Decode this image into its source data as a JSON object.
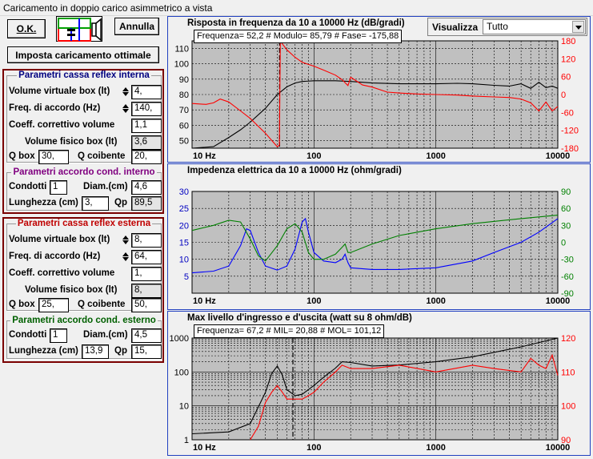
{
  "window": {
    "title": "Caricamento in doppio carico asimmetrico a vista"
  },
  "toolbar": {
    "ok_label": "O.K.",
    "annulla_label": "Annulla",
    "imposta_label": "Imposta caricamento ottimale"
  },
  "visualizza": {
    "label": "Visualizza",
    "selected": "Tutto"
  },
  "internal_box": {
    "title": "Parametri cassa reflex interna",
    "title_color": "#000080",
    "volume_label": "Volume virtuale box (lt)",
    "volume_value": "4,",
    "freq_label": "Freq. di accordo (Hz)",
    "freq_value": "140,",
    "coeff_label": "Coeff. correttivo volume",
    "coeff_value": "1,1",
    "physical_label": "Volume fisico box (lt)",
    "physical_value": "3,6",
    "qbox_label": "Q box",
    "qbox_value": "30,",
    "qcoib_label": "Q coibente",
    "qcoib_value": "20,"
  },
  "internal_duct": {
    "title": "Parametri accordo cond. interno",
    "title_color": "#800080",
    "condotti_label": "Condotti",
    "condotti_value": "1",
    "diam_label": "Diam.(cm)",
    "diam_value": "4,6",
    "lung_label": "Lunghezza (cm)",
    "lung_value": "3,",
    "qp_label": "Qp",
    "qp_value": "89,5"
  },
  "external_box": {
    "title": "Parametri cassa reflex esterna",
    "title_color": "#c00000",
    "volume_label": "Volume virtuale box (lt)",
    "volume_value": "8,",
    "freq_label": "Freq. di accordo (Hz)",
    "freq_value": "64,",
    "coeff_label": "Coeff. correttivo volume",
    "coeff_value": "1,",
    "physical_label": "Volume fisico box (lt)",
    "physical_value": "8,",
    "qbox_label": "Q box",
    "qbox_value": "25,",
    "qcoib_label": "Q coibente",
    "qcoib_value": "50,"
  },
  "external_duct": {
    "title": "Parametri accordo cond. esterno",
    "title_color": "#006000",
    "condotti_label": "Condotti",
    "condotti_value": "1",
    "diam_label": "Diam.(cm)",
    "diam_value": "4,5",
    "lung_label": "Lunghezza (cm)",
    "lung_value": "13,9",
    "qp_label": "Qp",
    "qp_value": "15,"
  },
  "chart_data": [
    {
      "type": "line",
      "title": "Risposta in frequenza da 10 a 10000 Hz (dB/gradi)",
      "readout": "Frequenza= 52,2 # Modulo= 85,79 # Fase= -175,88",
      "x_scale": "log",
      "xlim": [
        10,
        10000
      ],
      "x_ticks": [
        "10 Hz",
        "100",
        "1000",
        "10000"
      ],
      "ylim_left": [
        45,
        115
      ],
      "y_ticks_left": [
        50,
        60,
        70,
        80,
        90,
        100,
        110
      ],
      "ylim_right": [
        -180,
        180
      ],
      "y_ticks_right": [
        -180,
        -120,
        -60,
        0,
        60,
        120,
        180
      ],
      "cursor_x": 52.2,
      "series": [
        {
          "color": "#000000",
          "axis": "left",
          "x": [
            10,
            15,
            20,
            25,
            30,
            40,
            50,
            60,
            70,
            80,
            100,
            150,
            200,
            300,
            500,
            700,
            1000,
            1500,
            2000,
            3000,
            4000,
            5000,
            6000,
            7000,
            8000,
            9000,
            10000
          ],
          "y": [
            45,
            46,
            52,
            57,
            62,
            71,
            80,
            85,
            87.5,
            88.5,
            89,
            89,
            88.5,
            87.5,
            87,
            87,
            87,
            87.3,
            87,
            86,
            85.5,
            87,
            84,
            88,
            84.5,
            85.5,
            84
          ]
        },
        {
          "color": "#ff0000",
          "axis": "right",
          "x": [
            10,
            13,
            15,
            17,
            20,
            25,
            30,
            40,
            50,
            52,
            53,
            55,
            60,
            70,
            80,
            100,
            120,
            150,
            170,
            190,
            200,
            250,
            300,
            400,
            500,
            700,
            1000,
            1500,
            2000,
            3000,
            4000,
            5000,
            6000,
            7000,
            8000,
            9000,
            10000
          ],
          "y": [
            -30,
            -33,
            -28,
            -15,
            -25,
            -55,
            -80,
            -130,
            -175,
            -170,
            178,
            170,
            150,
            125,
            108,
            95,
            82,
            65,
            50,
            30,
            58,
            32,
            25,
            8,
            5,
            2,
            0,
            -2,
            -5,
            -8,
            -10,
            -15,
            -28,
            -55,
            -25,
            -55,
            -40
          ]
        }
      ]
    },
    {
      "type": "line",
      "title": "Impedenza elettrica da 10 a 10000 Hz (ohm/gradi)",
      "x_scale": "log",
      "xlim": [
        10,
        10000
      ],
      "x_ticks": [
        "10 Hz",
        "100",
        "1000",
        "10000"
      ],
      "ylim_left": [
        0,
        30
      ],
      "y_ticks_left": [
        5,
        10,
        15,
        20,
        25,
        30
      ],
      "ylim_right": [
        -90,
        90
      ],
      "y_ticks_right": [
        -90,
        -60,
        -30,
        0,
        30,
        60,
        90
      ],
      "series": [
        {
          "color": "#0000ff",
          "axis": "left",
          "x": [
            10,
            15,
            20,
            25,
            28,
            30,
            35,
            40,
            50,
            60,
            70,
            80,
            85,
            90,
            100,
            120,
            150,
            170,
            180,
            190,
            200,
            300,
            500,
            1000,
            2000,
            3000,
            5000,
            7000,
            10000
          ],
          "y": [
            6,
            6.5,
            8,
            14,
            19,
            18.5,
            12,
            8,
            6.8,
            8,
            13,
            21,
            22,
            18,
            12,
            9.5,
            9,
            10,
            11.5,
            9,
            7.5,
            7,
            7,
            7.5,
            9.5,
            12,
            15,
            18,
            22
          ]
        },
        {
          "color": "#008000",
          "axis": "left",
          "x": [
            10,
            15,
            20,
            25,
            30,
            35,
            40,
            50,
            60,
            70,
            80,
            90,
            100,
            120,
            150,
            170,
            180,
            190,
            200,
            300,
            500,
            1000,
            2000,
            5000,
            10000
          ],
          "y": [
            18.5,
            20,
            21.5,
            21,
            16,
            11,
            9.5,
            14,
            19,
            20.5,
            18,
            12,
            10,
            10,
            11.5,
            13.5,
            14.5,
            12,
            12,
            14.5,
            17,
            19,
            20.5,
            22,
            23
          ]
        }
      ]
    },
    {
      "type": "line",
      "title": "Max livello d'ingresso e d'uscita (watt su 8 ohm/dB)",
      "readout": "Frequenza= 67,2 # MIL= 20,88 # MOL= 101,12",
      "x_scale": "log",
      "xlim": [
        10,
        10000
      ],
      "x_ticks": [
        "10 Hz",
        "100",
        "1000",
        "10000"
      ],
      "y_scale_left": "log",
      "ylim_left": [
        1,
        1000
      ],
      "y_ticks_left": [
        "1",
        "10",
        "100",
        "1000"
      ],
      "ylim_right": [
        90,
        120
      ],
      "y_ticks_right": [
        90,
        100,
        110,
        120
      ],
      "cursor_x": 67.2,
      "series": [
        {
          "color": "#000000",
          "axis": "left",
          "x": [
            10,
            20,
            30,
            40,
            45,
            50,
            55,
            60,
            70,
            80,
            100,
            120,
            150,
            170,
            200,
            300,
            500,
            1000,
            2000,
            5000,
            10000
          ],
          "y": [
            1.5,
            1.7,
            3,
            25,
            90,
            150,
            80,
            30,
            20,
            22,
            40,
            70,
            130,
            200,
            190,
            150,
            160,
            200,
            280,
            550,
            1000
          ]
        },
        {
          "color": "#ff0000",
          "axis": "right",
          "x": [
            30,
            35,
            40,
            45,
            50,
            55,
            60,
            70,
            80,
            90,
            100,
            120,
            150,
            170,
            200,
            300,
            500,
            1000,
            2000,
            3000,
            5000,
            6000,
            7000,
            8000,
            9000,
            10000
          ],
          "y": [
            90,
            94,
            101,
            104,
            106,
            104,
            102,
            102,
            102,
            103,
            104,
            107,
            110,
            112,
            111,
            111,
            112,
            110,
            112,
            111,
            110,
            114,
            112,
            111,
            115,
            109
          ]
        }
      ]
    }
  ]
}
